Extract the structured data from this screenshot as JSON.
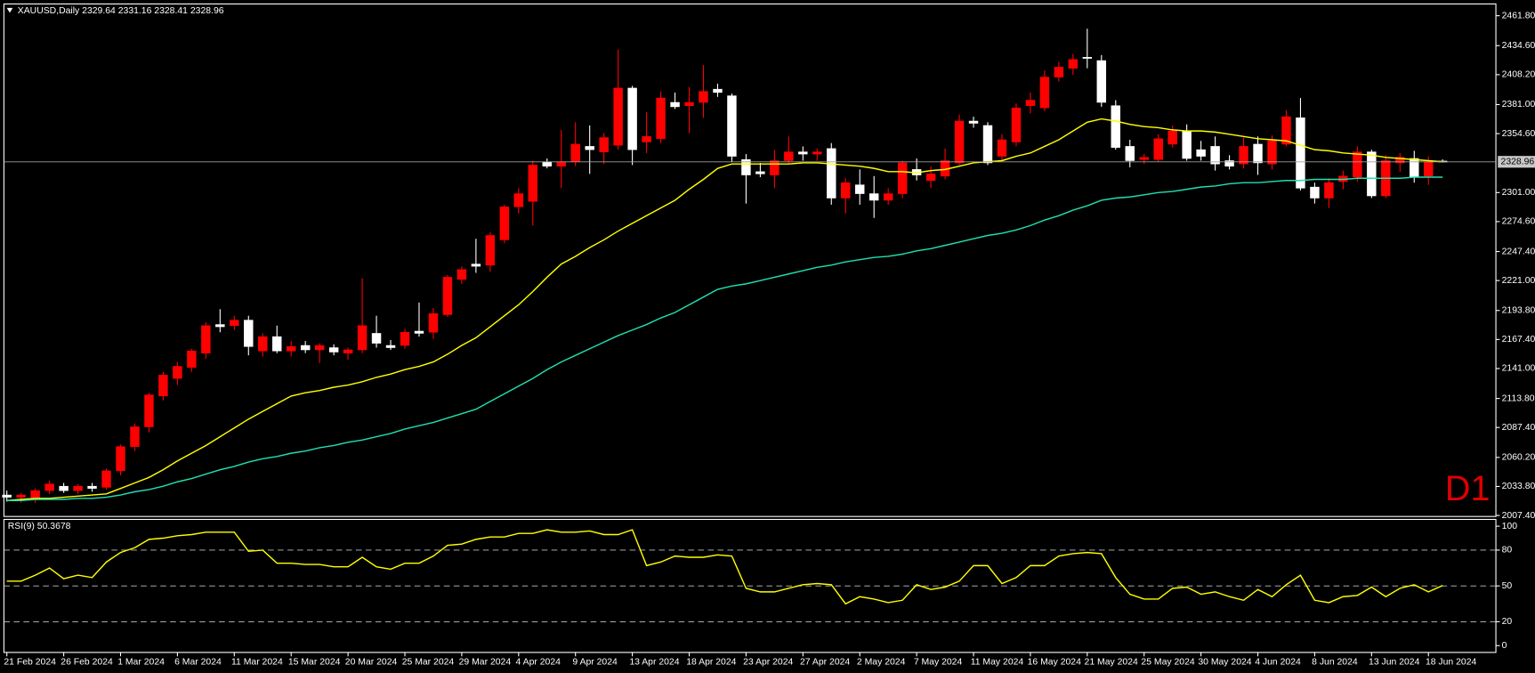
{
  "chart_data": [
    {
      "type": "candlestick",
      "title": "XAUUSD,Daily 2329.64 2331.16 2328.41 2328.96",
      "annotation": "D1",
      "categories": [
        "21 Feb 2024",
        null,
        null,
        null,
        "26 Feb 2024",
        null,
        null,
        null,
        "1 Mar 2024",
        null,
        null,
        null,
        "6 Mar 2024",
        null,
        null,
        null,
        "11 Mar 2024",
        null,
        null,
        null,
        "15 Mar 2024",
        null,
        null,
        null,
        "20 Mar 2024",
        null,
        null,
        null,
        "25 Mar 2024",
        null,
        null,
        null,
        "29 Mar 2024",
        null,
        null,
        null,
        "4 Apr 2024",
        null,
        null,
        null,
        "9 Apr 2024",
        null,
        null,
        null,
        "13 Apr 2024",
        null,
        null,
        null,
        "18 Apr 2024",
        null,
        null,
        null,
        "23 Apr 2024",
        null,
        null,
        null,
        "27 Apr 2024",
        null,
        null,
        null,
        "2 May 2024",
        null,
        null,
        null,
        "7 May 2024",
        null,
        null,
        null,
        "11 May 2024",
        null,
        null,
        null,
        "16 May 2024",
        null,
        null,
        null,
        "21 May 2024",
        null,
        null,
        null,
        "25 May 2024",
        null,
        null,
        null,
        "30 May 2024",
        null,
        null,
        null,
        "4 Jun 2024",
        null,
        null,
        null,
        "8 Jun 2024",
        null,
        null,
        null,
        "13 Jun 2024",
        null,
        null,
        null,
        "18 Jun 2024",
        null
      ],
      "open": [
        2026,
        2024,
        2022,
        2030,
        2034,
        2030,
        2034,
        2033,
        2048,
        2070,
        2088,
        2116,
        2132,
        2142,
        2155,
        2181,
        2180,
        2185,
        2157,
        2170,
        2157,
        2162,
        2158,
        2160,
        2155,
        2158,
        2173,
        2162,
        2162,
        2175,
        2174,
        2190,
        2222,
        2236,
        2235,
        2258,
        2288,
        2293,
        2329,
        2325,
        2329,
        2343,
        2338,
        2344,
        2396,
        2347,
        2350,
        2383,
        2380,
        2383,
        2395,
        2389,
        2331,
        2320,
        2317,
        2330,
        2338,
        2336,
        2341,
        2296,
        2308,
        2300,
        2294,
        2300,
        2322,
        2312,
        2316,
        2328,
        2366,
        2362,
        2334,
        2347,
        2380,
        2378,
        2406,
        2414,
        2424,
        2421,
        2380,
        2343,
        2331,
        2331,
        2345,
        2357,
        2340,
        2343,
        2330,
        2327,
        2345,
        2327,
        2345,
        2369,
        2306,
        2296,
        2311,
        2315,
        2338,
        2298,
        2328,
        2332,
        2316,
        2329.64
      ],
      "high": [
        2030,
        2028,
        2032,
        2039,
        2037,
        2036,
        2037,
        2050,
        2072,
        2091,
        2119,
        2138,
        2147,
        2159,
        2183,
        2195,
        2189,
        2189,
        2173,
        2180,
        2166,
        2166,
        2164,
        2163,
        2160,
        2223,
        2189,
        2167,
        2177,
        2201,
        2196,
        2226,
        2234,
        2259,
        2265,
        2290,
        2305,
        2330,
        2332,
        2358,
        2365,
        2362,
        2355,
        2431,
        2398,
        2374,
        2393,
        2392,
        2397,
        2417,
        2400,
        2391,
        2336,
        2328,
        2340,
        2352,
        2343,
        2341,
        2346,
        2314,
        2322,
        2316,
        2305,
        2330,
        2332,
        2325,
        2341,
        2372,
        2370,
        2365,
        2354,
        2382,
        2392,
        2412,
        2420,
        2427,
        2450,
        2426,
        2385,
        2349,
        2336,
        2354,
        2362,
        2363,
        2348,
        2352,
        2335,
        2351,
        2352,
        2353,
        2376,
        2387,
        2310,
        2314,
        2321,
        2343,
        2340,
        2335,
        2337,
        2339,
        2334,
        2331.16
      ],
      "low": [
        2020,
        2019,
        2019,
        2027,
        2028,
        2027,
        2029,
        2031,
        2044,
        2066,
        2083,
        2112,
        2126,
        2138,
        2150,
        2174,
        2176,
        2153,
        2152,
        2155,
        2152,
        2155,
        2146,
        2153,
        2149,
        2155,
        2160,
        2158,
        2159,
        2170,
        2168,
        2188,
        2218,
        2228,
        2229,
        2255,
        2282,
        2271,
        2323,
        2305,
        2325,
        2318,
        2327,
        2340,
        2326,
        2337,
        2346,
        2377,
        2355,
        2369,
        2388,
        2329,
        2291,
        2315,
        2305,
        2327,
        2330,
        2330,
        2290,
        2282,
        2290,
        2278,
        2290,
        2296,
        2312,
        2305,
        2313,
        2326,
        2360,
        2326,
        2330,
        2343,
        2373,
        2375,
        2402,
        2408,
        2414,
        2379,
        2340,
        2324,
        2327,
        2329,
        2342,
        2330,
        2330,
        2321,
        2322,
        2323,
        2317,
        2322,
        2343,
        2303,
        2291,
        2287,
        2304,
        2311,
        2296,
        2296,
        2320,
        2310,
        2308,
        2328.41
      ],
      "close": [
        2024,
        2026,
        2030,
        2036,
        2030,
        2034,
        2032,
        2048,
        2070,
        2088,
        2117,
        2135,
        2143,
        2157,
        2180,
        2179,
        2185,
        2161,
        2170,
        2157,
        2161,
        2158,
        2162,
        2156,
        2158,
        2180,
        2164,
        2160,
        2174,
        2173,
        2191,
        2224,
        2231,
        2234,
        2262,
        2288,
        2300,
        2326,
        2325,
        2329,
        2345,
        2340,
        2351,
        2396,
        2340,
        2352,
        2387,
        2379,
        2383,
        2393,
        2392,
        2334,
        2317,
        2318,
        2330,
        2338,
        2336,
        2338,
        2296,
        2310,
        2300,
        2294,
        2300,
        2328,
        2317,
        2318,
        2330,
        2366,
        2364,
        2328,
        2349,
        2378,
        2385,
        2406,
        2415,
        2422,
        2423,
        2383,
        2342,
        2330,
        2333,
        2350,
        2357,
        2332,
        2334,
        2327,
        2325,
        2343,
        2328,
        2348,
        2370,
        2305,
        2296,
        2310,
        2316,
        2338,
        2298,
        2330,
        2333,
        2315,
        2329,
        2328.96
      ],
      "up_color": "#ff0000",
      "down_color": "#ffffff",
      "lines": [
        {
          "color": "#ffff00",
          "values": [
            2021,
            2022,
            2023,
            2023,
            2024,
            2025,
            2026,
            2027,
            2032,
            2037,
            2042,
            2049,
            2057,
            2064,
            2071,
            2079,
            2087,
            2095,
            2102,
            2109,
            2116,
            2119,
            2121,
            2124,
            2126,
            2129,
            2133,
            2136,
            2140,
            2143,
            2147,
            2154,
            2162,
            2169,
            2179,
            2189,
            2199,
            2211,
            2224,
            2236,
            2243,
            2251,
            2258,
            2266,
            2273,
            2280,
            2287,
            2294,
            2304,
            2313,
            2323,
            2327,
            2327,
            2327,
            2327,
            2327,
            2328,
            2328,
            2327,
            2326,
            2325,
            2323,
            2320,
            2320,
            2319,
            2321,
            2322,
            2325,
            2328,
            2329,
            2330,
            2334,
            2337,
            2343,
            2349,
            2357,
            2365,
            2368,
            2366,
            2363,
            2361,
            2360,
            2358,
            2357,
            2357,
            2356,
            2354,
            2352,
            2350,
            2349,
            2348,
            2344,
            2340,
            2339,
            2337,
            2336,
            2335,
            2333,
            2332,
            2331,
            2330,
            2329
          ]
        },
        {
          "color": "#20e0b0",
          "values": [
            2021,
            2021,
            2022,
            2022,
            2022,
            2023,
            2023,
            2024,
            2026,
            2029,
            2031,
            2034,
            2038,
            2041,
            2045,
            2049,
            2052,
            2056,
            2059,
            2061,
            2064,
            2066,
            2069,
            2071,
            2074,
            2076,
            2079,
            2082,
            2086,
            2089,
            2092,
            2096,
            2100,
            2104,
            2111,
            2118,
            2125,
            2132,
            2140,
            2147,
            2153,
            2159,
            2165,
            2171,
            2176,
            2181,
            2187,
            2192,
            2199,
            2206,
            2213,
            2216,
            2218,
            2221,
            2224,
            2227,
            2230,
            2233,
            2235,
            2238,
            2240,
            2242,
            2243,
            2245,
            2248,
            2250,
            2253,
            2256,
            2259,
            2262,
            2264,
            2267,
            2271,
            2276,
            2280,
            2285,
            2289,
            2294,
            2296,
            2297,
            2299,
            2301,
            2302,
            2304,
            2306,
            2307,
            2309,
            2310,
            2310,
            2311,
            2312,
            2312,
            2313,
            2313,
            2313,
            2314,
            2314,
            2314,
            2314,
            2315,
            2315,
            2315
          ]
        }
      ],
      "current_price": 2328.96,
      "ylim": [
        2006.5,
        2472.5
      ],
      "yticks": [
        {
          "value": 2461.8,
          "label": "2461.80"
        },
        {
          "value": 2434.6,
          "label": "2434.60"
        },
        {
          "value": 2408.2,
          "label": "2408.20"
        },
        {
          "value": 2381,
          "label": "2381.00"
        },
        {
          "value": 2354.6,
          "label": "2354.60"
        },
        {
          "value": 2301,
          "label": "2301.00"
        },
        {
          "value": 2274.6,
          "label": "2274.60"
        },
        {
          "value": 2247.4,
          "label": "2247.40"
        },
        {
          "value": 2221,
          "label": "2221.00"
        },
        {
          "value": 2193.8,
          "label": "2193.80"
        },
        {
          "value": 2167.4,
          "label": "2167.40"
        },
        {
          "value": 2141,
          "label": "2141.00"
        },
        {
          "value": 2113.8,
          "label": "2113.80"
        },
        {
          "value": 2087.4,
          "label": "2087.40"
        },
        {
          "value": 2060.2,
          "label": "2060.20"
        },
        {
          "value": 2033.8,
          "label": "2033.80"
        },
        {
          "value": 2007.4,
          "label": "2007.40"
        }
      ]
    },
    {
      "type": "line",
      "title": "RSI(9) 50.3678",
      "color": "#ffff00",
      "values": [
        54,
        54,
        59,
        65,
        56,
        59,
        57,
        70,
        78,
        82,
        89,
        90,
        92,
        93,
        95,
        95,
        95,
        79,
        80,
        69,
        69,
        68,
        68,
        66,
        66,
        74,
        66,
        64,
        69,
        69,
        75,
        84,
        85,
        89,
        91,
        91,
        94,
        94,
        97,
        95,
        95,
        96,
        93,
        93,
        97,
        67,
        70,
        75,
        74,
        74,
        76,
        75,
        48,
        45,
        45,
        48,
        51,
        52,
        51,
        35,
        41,
        39,
        36,
        38,
        51,
        47,
        49,
        54,
        67,
        67,
        52,
        57,
        67,
        67,
        75,
        77,
        78,
        77,
        57,
        43,
        39,
        39,
        48,
        49,
        43,
        45,
        41,
        38,
        47,
        41,
        51,
        59,
        38,
        36,
        41,
        42,
        49,
        41,
        48,
        51,
        45,
        50.3678
      ],
      "levels": [
        80,
        50,
        20
      ],
      "ylim": [
        -5.7,
        105.7
      ],
      "yticks": [
        100,
        80,
        50,
        20,
        0
      ]
    }
  ]
}
